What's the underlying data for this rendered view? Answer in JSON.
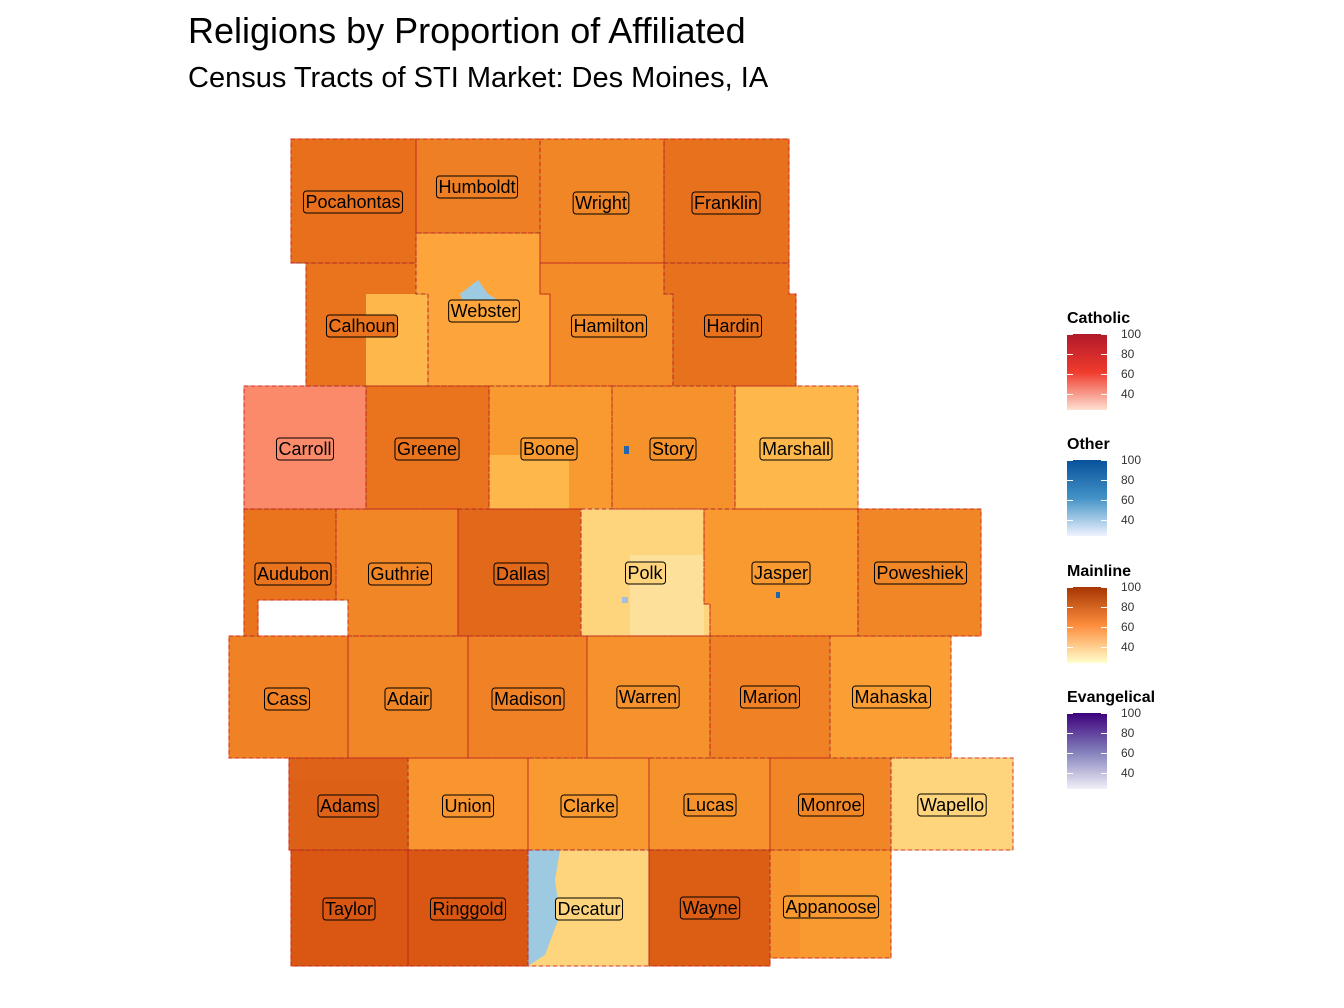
{
  "title": "Religions by Proportion of Affiliated",
  "subtitle": "Census Tracts of STI Market: Des Moines, IA",
  "counties": [
    {
      "name": "Pocahontas",
      "fill": "#e8701c"
    },
    {
      "name": "Humboldt",
      "fill": "#ee7f24"
    },
    {
      "name": "Wright",
      "fill": "#f18626"
    },
    {
      "name": "Franklin",
      "fill": "#e8711d"
    },
    {
      "name": "Calhoun",
      "fill": "#ea741e"
    },
    {
      "name": "Webster",
      "fill": "#fda53a"
    },
    {
      "name": "Hamilton",
      "fill": "#f38b28"
    },
    {
      "name": "Hardin",
      "fill": "#e8711d"
    },
    {
      "name": "Carroll",
      "fill": "#fb8a6a"
    },
    {
      "name": "Greene",
      "fill": "#ea741e"
    },
    {
      "name": "Boone",
      "fill": "#f99a31"
    },
    {
      "name": "Story",
      "fill": "#f6922c"
    },
    {
      "name": "Marshall",
      "fill": "#fdb74a"
    },
    {
      "name": "Audubon",
      "fill": "#ea741e"
    },
    {
      "name": "Guthrie",
      "fill": "#f18626"
    },
    {
      "name": "Dallas",
      "fill": "#e2691a"
    },
    {
      "name": "Polk",
      "fill": "#fed57c"
    },
    {
      "name": "Jasper",
      "fill": "#f99a31"
    },
    {
      "name": "Poweshiek",
      "fill": "#f18626"
    },
    {
      "name": "Cass",
      "fill": "#f08225"
    },
    {
      "name": "Adair",
      "fill": "#f18626"
    },
    {
      "name": "Madison",
      "fill": "#f08225"
    },
    {
      "name": "Warren",
      "fill": "#f6922c"
    },
    {
      "name": "Marion",
      "fill": "#f08225"
    },
    {
      "name": "Mahaska",
      "fill": "#fb9f35"
    },
    {
      "name": "Adams",
      "fill": "#de6318"
    },
    {
      "name": "Union",
      "fill": "#f8952f"
    },
    {
      "name": "Clarke",
      "fill": "#f99a31"
    },
    {
      "name": "Lucas",
      "fill": "#f6922c"
    },
    {
      "name": "Monroe",
      "fill": "#f18626"
    },
    {
      "name": "Wapello",
      "fill": "#fed57c"
    },
    {
      "name": "Taylor",
      "fill": "#d95712"
    },
    {
      "name": "Ringgold",
      "fill": "#d95712"
    },
    {
      "name": "Decatur",
      "fill": "#fed57c"
    },
    {
      "name": "Wayne",
      "fill": "#dc5e15"
    },
    {
      "name": "Appanoose",
      "fill": "#f99a31"
    }
  ],
  "legends": [
    {
      "title": "Catholic",
      "ticks": [
        "100",
        "80",
        "60",
        "40"
      ],
      "color_top": "#b2182b",
      "color_mid": "#ef3b2c",
      "color_bottom": "#fee0d2"
    },
    {
      "title": "Other",
      "ticks": [
        "100",
        "80",
        "60",
        "40"
      ],
      "color_top": "#08519c",
      "color_mid": "#4292c6",
      "color_bottom": "#eff3ff"
    },
    {
      "title": "Mainline",
      "ticks": [
        "100",
        "80",
        "60",
        "40"
      ],
      "color_top": "#a63603",
      "color_mid": "#fd8d3c",
      "color_bottom": "#ffffcc"
    },
    {
      "title": "Evangelical",
      "ticks": [
        "100",
        "80",
        "60",
        "40"
      ],
      "color_top": "#3f007d",
      "color_mid": "#807dba",
      "color_bottom": "#f2f0f7"
    }
  ],
  "colors": {
    "other_accent": "#9ecae1",
    "county_border": "#ff0000",
    "outline": "#000000"
  }
}
